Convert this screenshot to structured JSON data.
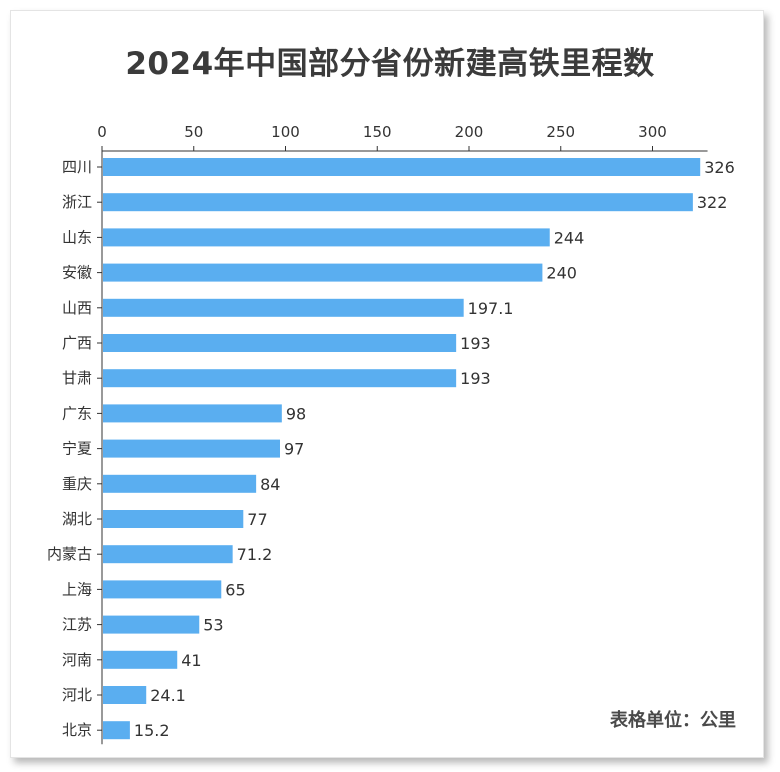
{
  "title": "2024年中国部分省份新建高铁里程数",
  "unit_note": "表格单位：公里",
  "chart_data": {
    "type": "bar",
    "orientation": "horizontal",
    "title": "2024年中国部分省份新建高铁里程数",
    "xlabel": "",
    "ylabel": "",
    "xlim": [
      0,
      330
    ],
    "x_ticks": [
      0,
      50,
      100,
      150,
      200,
      250,
      300
    ],
    "x_axis_position": "top",
    "grid": false,
    "bar_color": "#5aaef0",
    "categories": [
      "四川",
      "浙江",
      "山东",
      "安徽",
      "山西",
      "广西",
      "甘肃",
      "广东",
      "宁夏",
      "重庆",
      "湖北",
      "内蒙古",
      "上海",
      "江苏",
      "河南",
      "河北",
      "北京"
    ],
    "values": [
      326,
      322,
      244,
      240,
      197.1,
      193,
      193,
      98,
      97,
      84,
      77,
      71.2,
      65,
      53,
      41,
      24.1,
      15.2
    ],
    "value_labels": [
      "326",
      "322",
      "244",
      "240",
      "197.1",
      "193",
      "193",
      "98",
      "97",
      "84",
      "77",
      "71.2",
      "65",
      "53",
      "41",
      "24.1",
      "15.2"
    ]
  }
}
